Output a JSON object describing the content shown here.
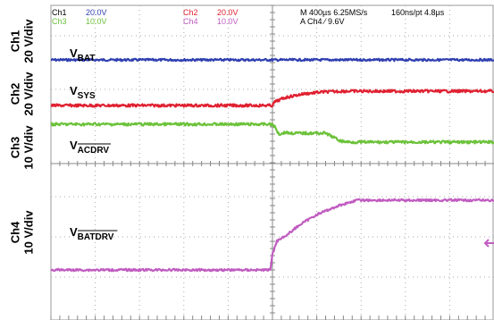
{
  "chart_data": {
    "type": "line",
    "title": "",
    "grid": true,
    "x": {
      "divisions": 10,
      "time_per_div": "400µs",
      "trigger_division": 5
    },
    "header": {
      "ch1": {
        "name": "Ch1",
        "scale": "20.0V",
        "color": "#2f3fb0"
      },
      "ch2": {
        "name": "Ch2",
        "scale": "20.0V",
        "color": "#e02030"
      },
      "ch3": {
        "name": "Ch3",
        "scale": "10.0V",
        "color": "#6cc23a"
      },
      "ch4": {
        "name": "Ch4",
        "scale": "10.0V",
        "color": "#c05cc0"
      },
      "timebase": "M 400µs 6.25MS/s",
      "resolution": "160ns/pt 4.8µs",
      "trigger": "A  Ch4  ⁄  9.6V"
    },
    "axis_labels": {
      "ch1": "Ch1\n20 V/div",
      "ch2": "Ch2\n20 V/div",
      "ch3": "Ch3\n10 V/div",
      "ch4": "Ch4\n10 V/div"
    },
    "series": [
      {
        "name": "VBAT",
        "main": "V",
        "sub": "BAT",
        "overline": false,
        "color": "#2f3fb0",
        "x": [
          0,
          10
        ],
        "y": [
          0.25,
          0.25
        ]
      },
      {
        "name": "VSYS",
        "main": "V",
        "sub": "SYS",
        "overline": false,
        "color": "#e02030",
        "x": [
          0,
          5.0,
          5.05,
          5.3,
          5.7,
          6.1,
          6.6,
          10
        ],
        "y": [
          -0.15,
          -0.15,
          0.05,
          0.3,
          0.5,
          0.6,
          0.65,
          0.65
        ]
      },
      {
        "name": "VACDRV",
        "main": "V",
        "sub": "ACDRV",
        "overline": true,
        "color": "#6cc23a",
        "x": [
          0,
          5.0,
          5.05,
          5.15,
          5.3,
          5.4,
          5.7,
          6.2,
          6.55,
          6.75,
          10
        ],
        "y": [
          0.2,
          0.2,
          0.05,
          -0.35,
          -0.25,
          -0.3,
          -0.3,
          -0.3,
          -0.75,
          -0.8,
          -0.8
        ]
      },
      {
        "name": "VBATDRV",
        "main": "V",
        "sub": "BATDRV",
        "overline": true,
        "color": "#c05cc0",
        "x": [
          0,
          4.95,
          5.0,
          5.1,
          5.2,
          5.3,
          5.6,
          6.0,
          6.5,
          6.9,
          10
        ],
        "y": [
          -0.6,
          -0.6,
          0.3,
          1.0,
          1.2,
          1.3,
          1.9,
          2.5,
          3.0,
          3.3,
          3.3
        ]
      }
    ]
  }
}
